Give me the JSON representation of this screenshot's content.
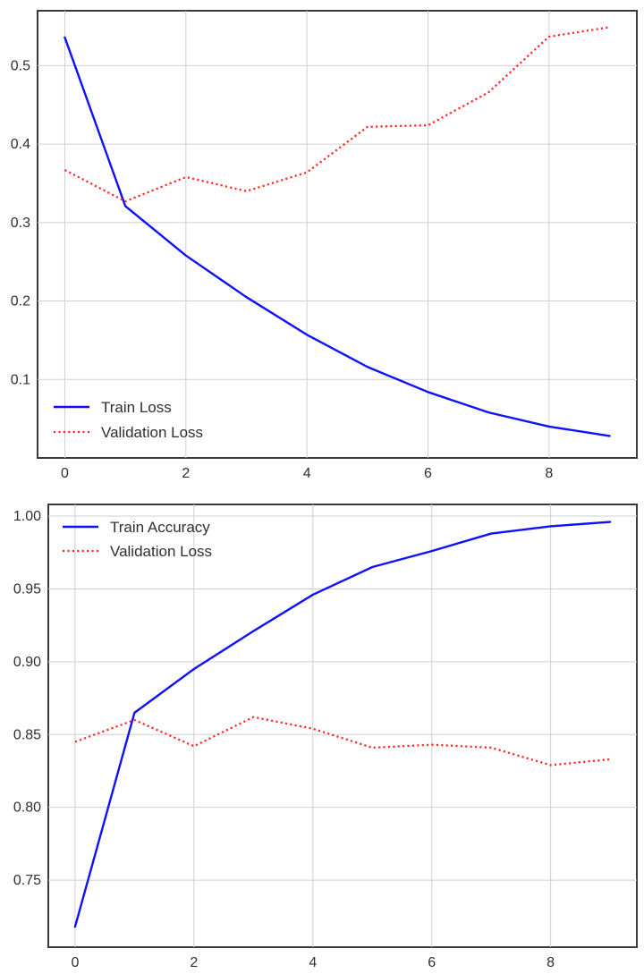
{
  "chart_data": [
    {
      "type": "line",
      "xlim": [
        -0.45,
        9.45
      ],
      "ylim": [
        0.0,
        0.57
      ],
      "x_ticks": [
        0,
        2,
        4,
        6,
        8
      ],
      "x_tick_labels": [
        "0",
        "2",
        "4",
        "6",
        "8"
      ],
      "y_ticks": [
        0.1,
        0.2,
        0.3,
        0.4,
        0.5
      ],
      "y_tick_labels": [
        "0.1",
        "0.2",
        "0.3",
        "0.4",
        "0.5"
      ],
      "grid": true,
      "legend_position": "bottom-left",
      "series": [
        {
          "name": "Train Loss",
          "color": "#1010ff",
          "style": "solid",
          "x": [
            0,
            1,
            2,
            3,
            4,
            5,
            6,
            7,
            8,
            9
          ],
          "values": [
            0.536,
            0.321,
            0.258,
            0.205,
            0.157,
            0.116,
            0.084,
            0.058,
            0.04,
            0.028
          ]
        },
        {
          "name": "Validation Loss",
          "color": "#ff2a2a",
          "style": "dotted",
          "x": [
            0,
            1,
            2,
            3,
            4,
            5,
            6,
            7,
            8,
            9
          ],
          "values": [
            0.367,
            0.327,
            0.358,
            0.34,
            0.364,
            0.422,
            0.424,
            0.466,
            0.537,
            0.549
          ]
        }
      ]
    },
    {
      "type": "line",
      "xlim": [
        -0.45,
        9.45
      ],
      "ylim": [
        0.704,
        1.008
      ],
      "x_ticks": [
        0,
        2,
        4,
        6,
        8
      ],
      "x_tick_labels": [
        "0",
        "2",
        "4",
        "6",
        "8"
      ],
      "y_ticks": [
        0.75,
        0.8,
        0.85,
        0.9,
        0.95,
        1.0
      ],
      "y_tick_labels": [
        "0.75",
        "0.80",
        "0.85",
        "0.90",
        "0.95",
        "1.00"
      ],
      "grid": true,
      "legend_position": "top-left",
      "series": [
        {
          "name": "Train Accuracy",
          "color": "#1010ff",
          "style": "solid",
          "x": [
            0,
            1,
            2,
            3,
            4,
            5,
            6,
            7,
            8,
            9
          ],
          "values": [
            0.718,
            0.865,
            0.895,
            0.921,
            0.946,
            0.965,
            0.976,
            0.988,
            0.993,
            0.996
          ]
        },
        {
          "name": "Validation Loss",
          "color": "#ff2a2a",
          "style": "dotted",
          "x": [
            0,
            1,
            2,
            3,
            4,
            5,
            6,
            7,
            8,
            9
          ],
          "values": [
            0.845,
            0.86,
            0.842,
            0.862,
            0.854,
            0.841,
            0.843,
            0.841,
            0.829,
            0.833
          ]
        }
      ]
    }
  ]
}
